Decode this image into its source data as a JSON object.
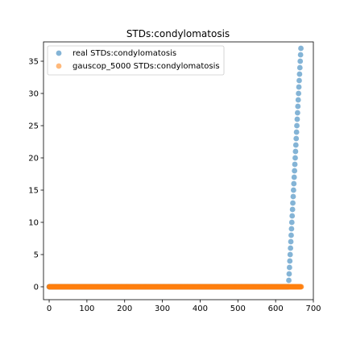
{
  "chart_data": {
    "type": "scatter",
    "title": "STDs:condylomatosis",
    "xlabel": "",
    "ylabel": "",
    "xlim": [
      -15,
      700
    ],
    "ylim": [
      -2,
      38
    ],
    "x_ticks": [
      0,
      100,
      200,
      300,
      400,
      500,
      600,
      700
    ],
    "y_ticks": [
      0,
      5,
      10,
      15,
      20,
      25,
      30,
      35
    ],
    "legend_position": "top-left",
    "series": [
      {
        "name": "real STDs:condylomatosis",
        "color": "#1f77b4",
        "zero_points": {
          "x_from": 0,
          "x_to": 634,
          "y": 0
        },
        "rising_points": {
          "x_from": 635,
          "x_to": 667,
          "y_from": 1,
          "y_to": 37
        }
      },
      {
        "name": "gauscop_5000 STDs:condylomatosis",
        "color": "#ff7f0e",
        "zero_points": {
          "x_from": 0,
          "x_to": 668,
          "y": 0
        }
      }
    ]
  }
}
